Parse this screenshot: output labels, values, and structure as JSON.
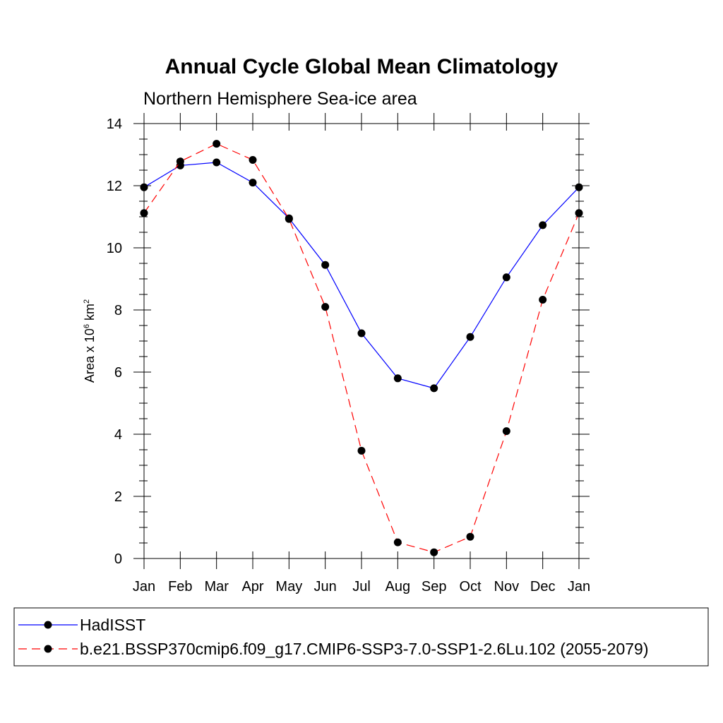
{
  "chart_data": {
    "type": "line",
    "title": "Annual Cycle Global Mean Climatology",
    "subtitle": "Northern Hemisphere Sea-ice area",
    "ylabel": {
      "base": "Area x 10",
      "exp1": "6",
      "mid": " km",
      "exp2": "2"
    },
    "xlabel": "",
    "categories": [
      "Jan",
      "Feb",
      "Mar",
      "Apr",
      "May",
      "Jun",
      "Jul",
      "Aug",
      "Sep",
      "Oct",
      "Nov",
      "Dec",
      "Jan"
    ],
    "ylim": [
      0,
      14
    ],
    "yticks": [
      0,
      2,
      4,
      6,
      8,
      10,
      12,
      14
    ],
    "series": [
      {
        "name": "HadISST",
        "color": "#0000ff",
        "dash": "solid",
        "values": [
          11.95,
          12.65,
          12.75,
          12.1,
          10.95,
          9.45,
          7.25,
          5.8,
          5.48,
          7.13,
          9.05,
          10.73,
          11.95
        ]
      },
      {
        "name": "b.e21.BSSP370cmip6.f09_g17.CMIP6-SSP3-7.0-SSP1-2.6Lu.102 (2055-2079)",
        "color": "#ff0000",
        "dash": "dashed",
        "values": [
          11.12,
          12.78,
          13.35,
          12.83,
          10.93,
          8.1,
          3.47,
          0.52,
          0.2,
          0.7,
          4.1,
          8.33,
          11.12
        ]
      }
    ],
    "grid": false,
    "legend_position": "bottom"
  }
}
